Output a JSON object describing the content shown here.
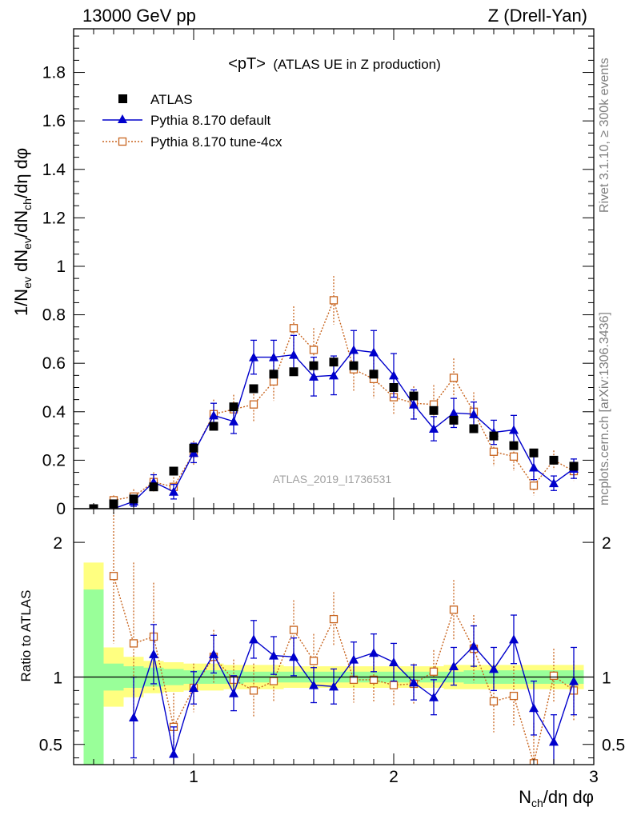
{
  "header": {
    "energy": "13000 GeV pp",
    "process": "Z (Drell-Yan)"
  },
  "side_labels": {
    "rivet": "Rivet 3.1.10, ≥ 300k events",
    "mcplots": "mcplots.cern.ch [arXiv:1306.3436]"
  },
  "watermark": "ATLAS_2019_I1736531",
  "chart_data": [
    {
      "type": "scatter",
      "panel": "main",
      "title_main": "<pT>",
      "title_sub": "(ATLAS UE in Z production)",
      "xlabel": "N_ch/dη dφ",
      "ylabel": "1/N_ev dN_ev/dN_ch/dη dφ",
      "xlim": [
        0.4,
        3.0
      ],
      "ylim": [
        0.0,
        1.98
      ],
      "x_ticks": [
        1,
        2,
        3
      ],
      "y_ticks": [
        0,
        0.2,
        0.4,
        0.6,
        0.8,
        1,
        1.2,
        1.4,
        1.6,
        1.8
      ],
      "y_tick_labels": [
        "0",
        "0.2",
        "0.4",
        "0.6",
        "0.8",
        "1",
        "1.2",
        "1.4",
        "1.6",
        "1.8"
      ],
      "legend_position": "top-left",
      "series": [
        {
          "name": "ATLAS",
          "style": "data-squares",
          "color": "#000000",
          "x": [
            0.5,
            0.6,
            0.7,
            0.8,
            0.9,
            1.0,
            1.1,
            1.2,
            1.3,
            1.4,
            1.5,
            1.6,
            1.7,
            1.8,
            1.9,
            2.0,
            2.1,
            2.2,
            2.3,
            2.4,
            2.5,
            2.6,
            2.7,
            2.8,
            2.9
          ],
          "y": [
            0.0,
            0.02,
            0.04,
            0.09,
            0.155,
            0.25,
            0.34,
            0.42,
            0.495,
            0.555,
            0.565,
            0.59,
            0.605,
            0.59,
            0.555,
            0.5,
            0.465,
            0.405,
            0.365,
            0.33,
            0.3,
            0.26,
            0.23,
            0.2,
            0.175
          ],
          "err": [
            0.0,
            0.005,
            0.005,
            0.005,
            0.005,
            0.01,
            0.01,
            0.01,
            0.01,
            0.01,
            0.01,
            0.01,
            0.01,
            0.01,
            0.01,
            0.01,
            0.01,
            0.01,
            0.01,
            0.01,
            0.01,
            0.01,
            0.01,
            0.01,
            0.01
          ]
        },
        {
          "name": "Pythia 8.170 default",
          "style": "solid-triangles",
          "color": "#0000cc",
          "x": [
            0.6,
            0.7,
            0.8,
            0.9,
            1.0,
            1.1,
            1.2,
            1.3,
            1.4,
            1.5,
            1.6,
            1.7,
            1.8,
            1.9,
            2.0,
            2.1,
            2.2,
            2.3,
            2.4,
            2.5,
            2.6,
            2.7,
            2.8,
            2.9
          ],
          "y": [
            0.0,
            0.03,
            0.11,
            0.07,
            0.23,
            0.385,
            0.36,
            0.625,
            0.625,
            0.635,
            0.545,
            0.55,
            0.655,
            0.645,
            0.55,
            0.43,
            0.33,
            0.395,
            0.39,
            0.315,
            0.325,
            0.17,
            0.105,
            0.165
          ],
          "err": [
            0.03,
            0.02,
            0.03,
            0.03,
            0.04,
            0.05,
            0.05,
            0.07,
            0.07,
            0.08,
            0.08,
            0.08,
            0.08,
            0.09,
            0.09,
            0.06,
            0.05,
            0.06,
            0.05,
            0.05,
            0.06,
            0.05,
            0.03,
            0.04
          ]
        },
        {
          "name": "Pythia 8.170 tune-4cx",
          "style": "dotted-open-squares",
          "color": "#c8641e",
          "x": [
            0.6,
            0.7,
            0.8,
            0.9,
            1.0,
            1.1,
            1.2,
            1.3,
            1.4,
            1.5,
            1.6,
            1.7,
            1.8,
            1.9,
            2.0,
            2.1,
            2.2,
            2.3,
            2.4,
            2.5,
            2.6,
            2.7,
            2.8,
            2.9
          ],
          "y": [
            0.035,
            0.05,
            0.11,
            0.09,
            0.23,
            0.39,
            0.41,
            0.43,
            0.525,
            0.745,
            0.655,
            0.86,
            0.575,
            0.535,
            0.46,
            0.435,
            0.43,
            0.54,
            0.4,
            0.235,
            0.215,
            0.095,
            0.2,
            0.155
          ],
          "err": [
            0.02,
            0.03,
            0.04,
            0.04,
            0.05,
            0.06,
            0.06,
            0.07,
            0.08,
            0.09,
            0.09,
            0.1,
            0.09,
            0.08,
            0.07,
            0.07,
            0.08,
            0.08,
            0.08,
            0.06,
            0.06,
            0.04,
            0.04,
            0.04
          ]
        }
      ]
    },
    {
      "type": "scatter",
      "panel": "ratio",
      "ylabel": "Ratio to ATLAS",
      "xlabel": "N_ch/dη dφ",
      "xlim": [
        0.4,
        3.0
      ],
      "ylim": [
        0.35,
        2.25
      ],
      "x_ticks": [
        1,
        2,
        3
      ],
      "x_tick_labels": [
        "1",
        "2",
        "3"
      ],
      "y_ticks": [
        0.5,
        1,
        2
      ],
      "y_tick_labels": [
        "0.5",
        "1",
        "2"
      ],
      "reference_line": 1,
      "bands": {
        "x_edges": [
          0.45,
          0.55,
          0.65,
          0.75,
          0.85,
          0.95,
          1.05,
          1.15,
          1.25,
          1.35,
          1.45,
          1.55,
          1.65,
          1.75,
          1.85,
          1.95,
          2.05,
          2.15,
          2.25,
          2.35,
          2.45,
          2.55,
          2.65,
          2.75,
          2.85,
          2.95
        ],
        "stat_sys_half_width": [
          0.85,
          0.22,
          0.15,
          0.12,
          0.11,
          0.1,
          0.1,
          0.09,
          0.09,
          0.09,
          0.08,
          0.08,
          0.08,
          0.08,
          0.08,
          0.08,
          0.08,
          0.08,
          0.09,
          0.09,
          0.09,
          0.09,
          0.09,
          0.09,
          0.09
        ],
        "stat_half_width": [
          0.65,
          0.1,
          0.08,
          0.07,
          0.06,
          0.05,
          0.05,
          0.05,
          0.04,
          0.04,
          0.04,
          0.04,
          0.04,
          0.04,
          0.04,
          0.04,
          0.04,
          0.04,
          0.04,
          0.05,
          0.05,
          0.05,
          0.05,
          0.05,
          0.05
        ],
        "stat_sys_color": "#ffff80",
        "stat_color": "#99ff99"
      },
      "series": [
        {
          "name": "Pythia 8.170 default",
          "style": "solid-triangles",
          "color": "#0000cc",
          "x": [
            0.7,
            0.8,
            0.9,
            1.0,
            1.1,
            1.2,
            1.3,
            1.4,
            1.5,
            1.6,
            1.7,
            1.8,
            1.9,
            2.0,
            2.1,
            2.2,
            2.3,
            2.4,
            2.5,
            2.6,
            2.7,
            2.8,
            2.9
          ],
          "y": [
            0.7,
            1.17,
            0.43,
            0.92,
            1.17,
            0.88,
            1.28,
            1.16,
            1.15,
            0.94,
            0.93,
            1.13,
            1.18,
            1.11,
            0.96,
            0.85,
            1.08,
            1.23,
            1.06,
            1.28,
            0.77,
            0.52,
            0.97
          ],
          "err": [
            0.3,
            0.22,
            0.2,
            0.12,
            0.14,
            0.13,
            0.14,
            0.14,
            0.14,
            0.13,
            0.13,
            0.13,
            0.14,
            0.14,
            0.13,
            0.13,
            0.14,
            0.15,
            0.16,
            0.18,
            0.2,
            0.2,
            0.25
          ]
        },
        {
          "name": "Pythia 8.170 tune-4cx",
          "style": "dotted-open-squares",
          "color": "#c8641e",
          "x": [
            0.6,
            0.7,
            0.8,
            0.9,
            1.0,
            1.1,
            1.2,
            1.3,
            1.4,
            1.5,
            1.6,
            1.7,
            1.8,
            1.9,
            2.0,
            2.1,
            2.2,
            2.3,
            2.4,
            2.5,
            2.6,
            2.7,
            2.8,
            2.9
          ],
          "y": [
            1.75,
            1.25,
            1.3,
            0.63,
            0.92,
            1.15,
            0.98,
            0.9,
            0.97,
            1.35,
            1.12,
            1.43,
            0.98,
            0.98,
            0.94,
            0.95,
            1.04,
            1.5,
            1.21,
            0.82,
            0.86,
            0.36,
            1.01,
            0.9
          ],
          "err": [
            0.5,
            0.6,
            0.4,
            0.25,
            0.18,
            0.2,
            0.15,
            0.2,
            0.15,
            0.22,
            0.2,
            0.2,
            0.17,
            0.16,
            0.15,
            0.15,
            0.16,
            0.22,
            0.25,
            0.23,
            0.22,
            0.3,
            0.2,
            0.22
          ]
        }
      ]
    }
  ]
}
